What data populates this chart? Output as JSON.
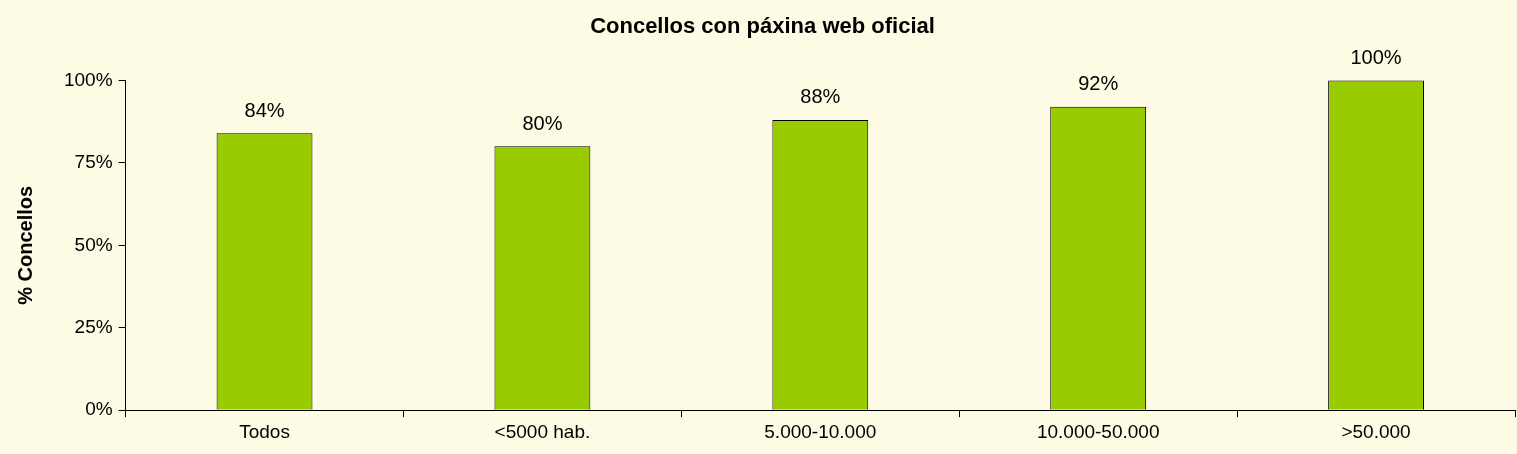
{
  "chart_data": {
    "type": "bar",
    "title": "Concellos con páxina web oficial",
    "ylabel": "% Concellos",
    "categories": [
      "Todos",
      "<5000 hab.",
      "5.000-10.000",
      "10.000-50.000",
      ">50.000"
    ],
    "values": [
      84,
      80,
      88,
      92,
      100
    ],
    "color": "#99cc00",
    "value_labels": [
      "84%",
      "80%",
      "88%",
      "92%",
      "100%"
    ],
    "ylim": [
      0,
      100
    ],
    "yticks": [
      {
        "value": 0,
        "label": "0%"
      },
      {
        "value": 25,
        "label": "25%"
      },
      {
        "value": 50,
        "label": "50%"
      },
      {
        "value": 75,
        "label": "75%"
      },
      {
        "value": 100,
        "label": "100%"
      }
    ]
  }
}
